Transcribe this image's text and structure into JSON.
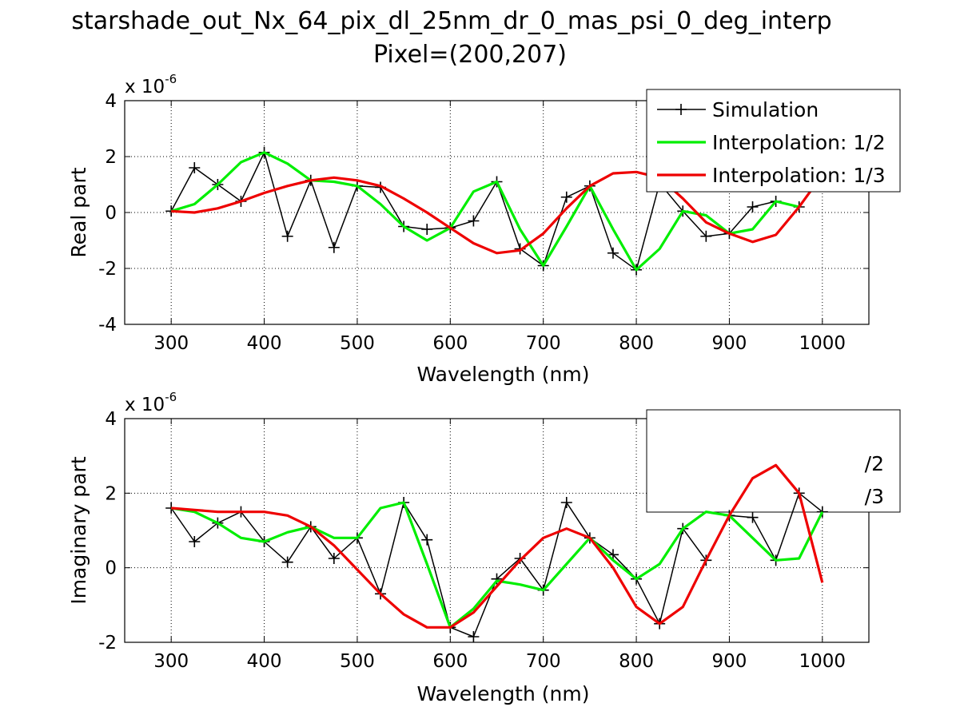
{
  "figure": {
    "title_line1": "starshade_out_Nx_64_pix_dl_25nm_dr_0_mas_psi_0_deg_interp",
    "title_line2": "Pixel=(200,207)"
  },
  "colors": {
    "simulation": "#000000",
    "interp_half": "#00ee00",
    "interp_third": "#ee0000"
  },
  "chart_data": [
    {
      "type": "line",
      "title": "",
      "xlabel": "Wavelength (nm)",
      "ylabel": "Real part",
      "exponent_base": "x 10",
      "exponent_power": "-6",
      "xlim": [
        250,
        1050
      ],
      "ylim": [
        -4,
        4
      ],
      "xticks": [
        300,
        400,
        500,
        600,
        700,
        800,
        900,
        1000
      ],
      "xtick_labels": [
        "300",
        "400",
        "500",
        "600",
        "700",
        "800",
        "900",
        "1000"
      ],
      "yticks": [
        -4,
        -2,
        0,
        2,
        4
      ],
      "ytick_labels": [
        "-4",
        "-2",
        "0",
        "2",
        "4"
      ],
      "grid": true,
      "legend_position": "top-right",
      "series": [
        {
          "name": "Simulation",
          "color": "#000000",
          "marker": "+",
          "x": [
            300,
            325,
            350,
            375,
            400,
            425,
            450,
            475,
            500,
            525,
            550,
            575,
            600,
            625,
            650,
            675,
            700,
            725,
            750,
            775,
            800,
            825,
            850,
            875,
            900,
            925,
            950,
            975
          ],
          "y": [
            0.05,
            1.6,
            1.0,
            0.4,
            2.15,
            -0.85,
            1.15,
            -1.25,
            0.95,
            0.9,
            -0.5,
            -0.6,
            -0.55,
            -0.3,
            1.1,
            -1.3,
            -1.9,
            0.55,
            0.95,
            -1.45,
            -2.05,
            1.05,
            0.05,
            -0.85,
            -0.75,
            0.2,
            0.4,
            0.2
          ]
        },
        {
          "name": "Interpolation: 1/2",
          "color": "#00ee00",
          "x": [
            300,
            325,
            350,
            375,
            400,
            425,
            450,
            475,
            500,
            525,
            550,
            575,
            600,
            625,
            650,
            675,
            700,
            725,
            750,
            775,
            800,
            825,
            850,
            875,
            900,
            925,
            950,
            975
          ],
          "y": [
            0.05,
            0.3,
            1.0,
            1.8,
            2.15,
            1.75,
            1.15,
            1.1,
            0.95,
            0.3,
            -0.5,
            -1.0,
            -0.55,
            0.75,
            1.1,
            -0.6,
            -1.9,
            -0.5,
            0.95,
            -0.6,
            -2.05,
            -1.3,
            0.05,
            -0.1,
            -0.75,
            -0.6,
            0.4,
            0.2
          ]
        },
        {
          "name": "Interpolation: 1/3",
          "color": "#ee0000",
          "x": [
            300,
            325,
            350,
            375,
            400,
            425,
            450,
            475,
            500,
            525,
            550,
            575,
            600,
            625,
            650,
            675,
            700,
            725,
            750,
            775,
            800,
            825,
            850,
            875,
            900,
            925,
            950,
            975,
            1000
          ],
          "y": [
            0.05,
            0.0,
            0.15,
            0.4,
            0.7,
            0.95,
            1.15,
            1.25,
            1.15,
            0.95,
            0.5,
            0.0,
            -0.55,
            -1.1,
            -1.45,
            -1.35,
            -0.75,
            0.15,
            0.95,
            1.4,
            1.45,
            1.25,
            0.5,
            -0.35,
            -0.75,
            -1.05,
            -0.8,
            0.2,
            1.35
          ]
        }
      ]
    },
    {
      "type": "line",
      "title": "",
      "xlabel": "Wavelength (nm)",
      "ylabel": "Imaginary part",
      "exponent_base": "x 10",
      "exponent_power": "-6",
      "xlim": [
        250,
        1050
      ],
      "ylim": [
        -2,
        4
      ],
      "xticks": [
        300,
        400,
        500,
        600,
        700,
        800,
        900,
        1000
      ],
      "xtick_labels": [
        "300",
        "400",
        "500",
        "600",
        "700",
        "800",
        "900",
        "1000"
      ],
      "yticks": [
        -2,
        0,
        2,
        4
      ],
      "ytick_labels": [
        "-2",
        "0",
        "2",
        "4"
      ],
      "grid": true,
      "legend_position": "top-right (partially covered)",
      "legend_visible_fragments": [
        "/2",
        "/3"
      ],
      "series": [
        {
          "name": "Simulation",
          "color": "#000000",
          "marker": "+",
          "x": [
            300,
            325,
            350,
            375,
            400,
            425,
            450,
            475,
            500,
            525,
            550,
            575,
            600,
            625,
            650,
            675,
            700,
            725,
            750,
            775,
            800,
            825,
            850,
            875,
            900,
            925,
            950,
            975,
            1000
          ],
          "y": [
            1.6,
            0.7,
            1.2,
            1.5,
            0.7,
            0.15,
            1.1,
            0.25,
            0.8,
            -0.7,
            1.75,
            0.75,
            -1.6,
            -1.85,
            -0.3,
            0.25,
            -0.6,
            1.75,
            0.8,
            0.35,
            -0.3,
            -1.5,
            1.05,
            0.2,
            1.4,
            1.35,
            0.2,
            2.0,
            1.5
          ]
        },
        {
          "name": "Interpolation: 1/2",
          "color": "#00ee00",
          "x": [
            300,
            325,
            350,
            375,
            400,
            425,
            450,
            475,
            500,
            525,
            550,
            575,
            600,
            625,
            650,
            675,
            700,
            725,
            750,
            775,
            800,
            825,
            850,
            875,
            900,
            925,
            950,
            975,
            1000
          ],
          "y": [
            1.6,
            1.5,
            1.2,
            0.8,
            0.7,
            0.95,
            1.1,
            0.8,
            0.8,
            1.6,
            1.75,
            0.1,
            -1.6,
            -1.1,
            -0.35,
            -0.45,
            -0.6,
            0.1,
            0.8,
            0.2,
            -0.3,
            0.1,
            1.05,
            1.5,
            1.4,
            0.8,
            0.2,
            0.25,
            1.5
          ]
        },
        {
          "name": "Interpolation: 1/3",
          "color": "#ee0000",
          "x": [
            300,
            325,
            350,
            375,
            400,
            425,
            450,
            475,
            500,
            525,
            550,
            575,
            600,
            625,
            650,
            675,
            700,
            725,
            750,
            775,
            800,
            825,
            850,
            875,
            900,
            925,
            950,
            975,
            1000
          ],
          "y": [
            1.6,
            1.55,
            1.5,
            1.5,
            1.5,
            1.4,
            1.1,
            0.6,
            -0.05,
            -0.7,
            -1.25,
            -1.6,
            -1.6,
            -1.2,
            -0.5,
            0.2,
            0.8,
            1.05,
            0.8,
            0.0,
            -1.05,
            -1.5,
            -1.05,
            0.2,
            1.4,
            2.4,
            2.75,
            2.0,
            -0.4
          ]
        }
      ]
    }
  ],
  "legend_labels": [
    "Simulation",
    "Interpolation: 1/2",
    "Interpolation: 1/3"
  ]
}
